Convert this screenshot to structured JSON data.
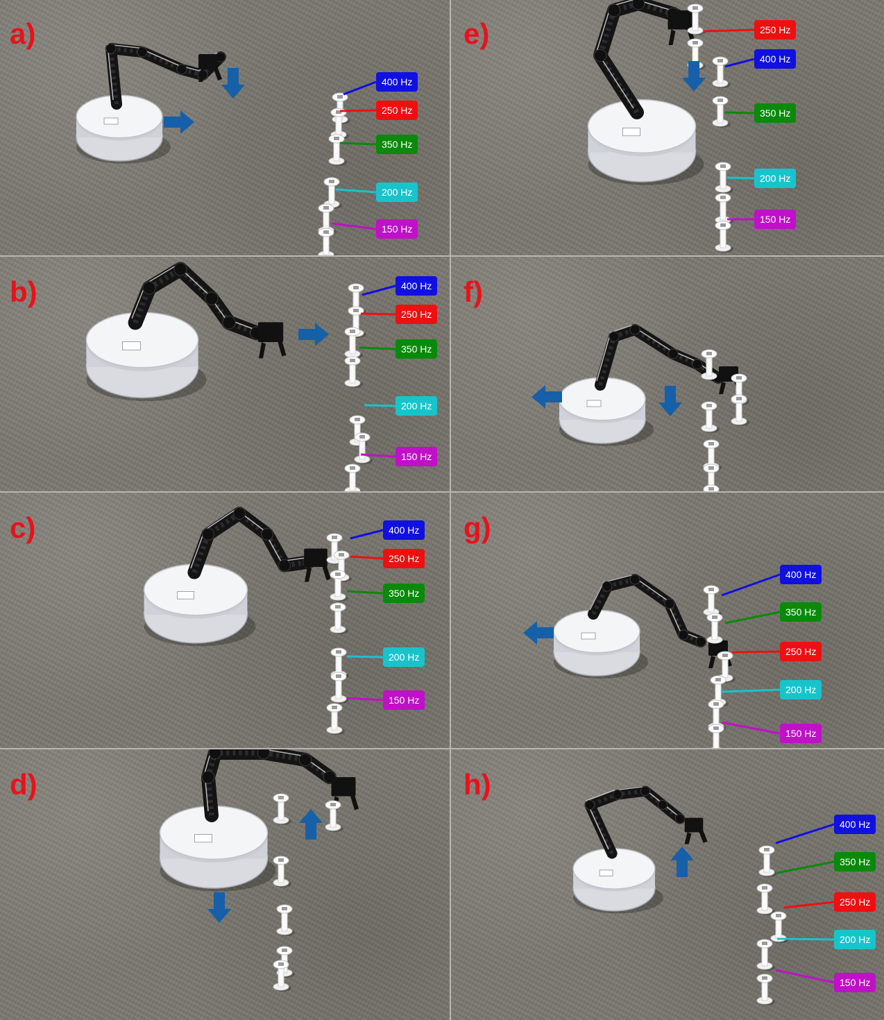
{
  "colors": {
    "400 Hz": "#1010e0",
    "250 Hz": "#ee1010",
    "350 Hz": "#0a8a0a",
    "200 Hz": "#18c4cc",
    "150 Hz": "#c010c8",
    "arrow": "#1560a8",
    "panel_letter": "#e8121a"
  },
  "panels": [
    {
      "id": "a",
      "letter": "a)",
      "labels": [
        "400 Hz",
        "250 Hz",
        "350 Hz",
        "200 Hz",
        "150 Hz"
      ],
      "arrows": [
        "right",
        "down"
      ]
    },
    {
      "id": "e",
      "letter": "e)",
      "labels": [
        "250 Hz",
        "400 Hz",
        "350 Hz",
        "200 Hz",
        "150 Hz"
      ],
      "arrows": [
        "down"
      ]
    },
    {
      "id": "b",
      "letter": "b)",
      "labels": [
        "400 Hz",
        "250 Hz",
        "350 Hz",
        "200 Hz",
        "150 Hz"
      ],
      "arrows": [
        "right"
      ]
    },
    {
      "id": "f",
      "letter": "f)",
      "labels": [],
      "arrows": [
        "left",
        "down"
      ]
    },
    {
      "id": "c",
      "letter": "c)",
      "labels": [
        "400 Hz",
        "250 Hz",
        "350 Hz",
        "200 Hz",
        "150 Hz"
      ],
      "arrows": []
    },
    {
      "id": "g",
      "letter": "g)",
      "labels": [
        "400 Hz",
        "350 Hz",
        "250 Hz",
        "200 Hz",
        "150 Hz"
      ],
      "arrows": [
        "left"
      ]
    },
    {
      "id": "d",
      "letter": "d)",
      "labels": [],
      "arrows": [
        "up",
        "down"
      ]
    },
    {
      "id": "h",
      "letter": "h)",
      "labels": [
        "400 Hz",
        "350 Hz",
        "250 Hz",
        "200 Hz",
        "150 Hz"
      ],
      "arrows": [
        "up"
      ]
    }
  ]
}
